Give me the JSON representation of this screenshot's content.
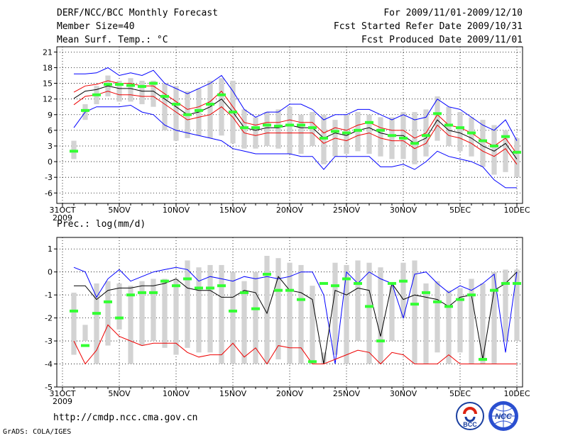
{
  "header": {
    "title": "DERF/NCC/BCC Monthly Forecast",
    "member": "Member Size=40",
    "variable": "Mean Surf. Temp.: °C",
    "period": "For 2009/11/01-2009/12/10",
    "started": "Fcst Started Refer Date 2009/10/31",
    "produced": "Fcst Produced Date 2009/11/01"
  },
  "prec_label": "Prec.: log(mm/d)",
  "footer": {
    "url": "http://cmdp.ncc.cma.gov.cn",
    "credit": "GrADS: COLA/IGES"
  },
  "logos": {
    "bcc": "BCC",
    "ncc": "NCC"
  },
  "colors": {
    "bar": "#d3d3d3",
    "green": "#33ff33",
    "blue": "#0000ff",
    "red": "#ee0000",
    "black": "#000000"
  },
  "chart_data": [
    {
      "type": "line",
      "title": "Mean Surf. Temp.: °C",
      "x_tick_labels": [
        "31OCT",
        "5NOV",
        "10NOV",
        "15NOV",
        "20NOV",
        "25NOV",
        "30NOV",
        "5DEC",
        "10DEC"
      ],
      "x_tick_days": [
        0,
        5,
        10,
        15,
        20,
        25,
        30,
        35,
        40
      ],
      "x_sublabel": "2009",
      "y_ticks": [
        -6,
        -3,
        0,
        3,
        6,
        9,
        12,
        15,
        18,
        21
      ],
      "ylim": [
        -8,
        22
      ],
      "xlim": [
        -0.5,
        40.5
      ],
      "days": [
        1,
        2,
        3,
        4,
        5,
        6,
        7,
        8,
        9,
        10,
        11,
        12,
        13,
        14,
        15,
        16,
        17,
        18,
        19,
        20,
        21,
        22,
        23,
        24,
        25,
        26,
        27,
        28,
        29,
        30,
        31,
        32,
        33,
        34,
        35,
        36,
        37,
        38,
        39,
        40
      ],
      "bar_low": [
        0.5,
        8.0,
        11.0,
        12.5,
        11.5,
        11.5,
        11.0,
        10.5,
        6.0,
        4.0,
        4.5,
        5.0,
        4.5,
        5.0,
        3.5,
        2.5,
        2.5,
        3.0,
        2.5,
        1.5,
        1.5,
        3.0,
        -0.5,
        1.0,
        1.5,
        2.0,
        1.5,
        1.0,
        0.5,
        0.5,
        -0.5,
        1.0,
        4.0,
        3.0,
        2.0,
        1.0,
        -1.0,
        -2.5,
        -2.0,
        -3.0
      ],
      "bar_high": [
        4.0,
        11.0,
        14.5,
        16.5,
        15.5,
        16.0,
        15.5,
        15.5,
        15.0,
        14.5,
        13.5,
        14.0,
        15.5,
        16.0,
        15.5,
        10.0,
        8.5,
        9.5,
        10.0,
        10.5,
        9.0,
        9.5,
        9.0,
        8.0,
        9.0,
        9.5,
        9.0,
        8.5,
        8.5,
        9.5,
        9.5,
        10.0,
        12.5,
        10.5,
        9.5,
        8.5,
        8.0,
        7.0,
        6.0,
        4.5
      ],
      "green": [
        2.0,
        9.8,
        12.8,
        14.8,
        14.8,
        14.6,
        14.4,
        15.0,
        12.5,
        11.0,
        9.0,
        9.8,
        11.0,
        12.8,
        9.5,
        6.5,
        6.5,
        7.0,
        6.8,
        7.0,
        7.0,
        6.5,
        4.5,
        5.8,
        5.5,
        6.0,
        7.5,
        6.0,
        5.0,
        4.5,
        3.5,
        5.0,
        9.2,
        7.0,
        6.5,
        5.5,
        4.0,
        3.0,
        4.8,
        1.8
      ],
      "series": [
        {
          "name": "upper",
          "color": "blue",
          "values": [
            16.8,
            16.8,
            17.0,
            18.0,
            16.5,
            17.0,
            16.5,
            17.5,
            15.0,
            14.0,
            13.0,
            14.0,
            15.0,
            16.5,
            13.5,
            10.0,
            8.5,
            9.5,
            9.5,
            11.0,
            11.0,
            10.0,
            8.0,
            9.0,
            9.0,
            10.0,
            10.0,
            9.0,
            8.0,
            9.0,
            8.0,
            8.5,
            12.0,
            10.5,
            10.0,
            8.5,
            7.0,
            6.0,
            8.0,
            4.0
          ]
        },
        {
          "name": "p70",
          "color": "red",
          "values": [
            13.3,
            14.5,
            14.8,
            15.5,
            15.0,
            15.0,
            14.5,
            14.5,
            13.0,
            11.5,
            10.0,
            10.5,
            11.5,
            13.5,
            10.5,
            7.5,
            7.0,
            7.5,
            7.5,
            8.0,
            7.5,
            7.5,
            5.5,
            6.5,
            6.0,
            7.0,
            7.5,
            6.5,
            6.0,
            6.0,
            4.5,
            5.5,
            9.0,
            7.0,
            6.5,
            5.5,
            4.0,
            3.0,
            4.5,
            1.5
          ]
        },
        {
          "name": "mean",
          "color": "black",
          "values": [
            12.1,
            13.5,
            13.8,
            14.5,
            14.0,
            14.0,
            13.5,
            13.5,
            12.0,
            10.5,
            9.0,
            9.5,
            10.5,
            12.0,
            9.5,
            6.5,
            6.0,
            6.5,
            6.5,
            7.0,
            6.5,
            6.5,
            4.5,
            5.5,
            5.0,
            6.0,
            6.5,
            5.5,
            5.0,
            5.0,
            3.5,
            4.5,
            8.0,
            6.0,
            5.5,
            4.5,
            3.0,
            2.0,
            3.5,
            0.5
          ]
        },
        {
          "name": "p30",
          "color": "red",
          "values": [
            10.9,
            12.5,
            12.8,
            13.5,
            12.8,
            12.8,
            12.5,
            12.5,
            11.0,
            9.5,
            8.0,
            8.5,
            9.0,
            10.5,
            8.5,
            5.5,
            5.0,
            5.5,
            5.5,
            5.5,
            5.5,
            5.5,
            3.5,
            4.5,
            4.0,
            5.0,
            5.5,
            4.5,
            4.0,
            4.0,
            2.5,
            3.5,
            7.0,
            5.0,
            4.5,
            3.5,
            2.0,
            1.0,
            2.5,
            -0.5
          ]
        },
        {
          "name": "lower",
          "color": "blue",
          "values": [
            6.5,
            9.5,
            10.5,
            10.5,
            10.5,
            10.8,
            9.5,
            9.0,
            7.0,
            6.0,
            5.5,
            5.0,
            4.5,
            4.0,
            2.5,
            2.0,
            1.5,
            1.5,
            1.5,
            1.5,
            1.0,
            1.0,
            -1.5,
            1.0,
            1.0,
            1.0,
            1.0,
            -1.0,
            -1.0,
            -0.5,
            -1.5,
            0.0,
            2.0,
            1.0,
            0.5,
            0.0,
            -1.0,
            -3.5,
            -5.0,
            -5.0
          ]
        }
      ]
    },
    {
      "type": "line",
      "title": "Prec.: log(mm/d)",
      "x_tick_labels": [
        "31OCT",
        "5NOV",
        "10NOV",
        "15NOV",
        "20NOV",
        "25NOV",
        "30NOV",
        "5DEC",
        "10DEC"
      ],
      "x_tick_days": [
        0,
        5,
        10,
        15,
        20,
        25,
        30,
        35,
        40
      ],
      "x_sublabel": "2009",
      "y_ticks": [
        -5,
        -4,
        -3,
        -2,
        -1,
        0,
        1
      ],
      "ylim": [
        -5,
        1.5
      ],
      "xlim": [
        -0.5,
        40.5
      ],
      "days": [
        1,
        2,
        3,
        4,
        5,
        6,
        7,
        8,
        9,
        10,
        11,
        12,
        13,
        14,
        15,
        16,
        17,
        18,
        19,
        20,
        21,
        22,
        23,
        24,
        25,
        26,
        27,
        28,
        29,
        30,
        31,
        32,
        33,
        34,
        35,
        36,
        37,
        38,
        39,
        40
      ],
      "bar_low": [
        -3.6,
        -3.0,
        -4.0,
        -3.2,
        -2.5,
        -4.0,
        -3.2,
        -3.0,
        -3.3,
        -3.6,
        -3.3,
        -3.5,
        -3.5,
        -4.0,
        -4.0,
        -4.0,
        -4.0,
        -4.0,
        -3.8,
        -4.0,
        -4.0,
        -4.0,
        -4.0,
        -3.6,
        -4.0,
        -3.0,
        -4.0,
        -4.0,
        -3.0,
        -2.0,
        -4.0,
        -4.0,
        -3.5,
        -4.0,
        -3.5,
        -4.0,
        -4.0,
        -4.0,
        -3.0,
        -3.0
      ],
      "bar_high": [
        -0.9,
        -2.3,
        -0.5,
        -0.4,
        -0.5,
        -0.6,
        -0.4,
        -0.3,
        -0.3,
        -0.3,
        0.5,
        0.2,
        0.3,
        0.3,
        0.0,
        -0.4,
        0.0,
        0.7,
        0.6,
        0.4,
        0.3,
        -0.6,
        -3.5,
        0.4,
        0.3,
        0.5,
        0.4,
        0.2,
        -0.6,
        0.4,
        0.5,
        -0.5,
        -0.4,
        -0.8,
        -0.7,
        -0.3,
        -0.5,
        0.0,
        0.1,
        0.1
      ],
      "green": [
        -1.7,
        -3.2,
        -1.8,
        -1.3,
        -2.0,
        -1.0,
        -0.9,
        -0.9,
        -0.4,
        -0.6,
        -0.3,
        -0.7,
        -0.7,
        -0.6,
        -1.7,
        -0.9,
        -1.6,
        -0.1,
        -0.8,
        -0.8,
        -1.2,
        -3.9,
        -0.5,
        -0.6,
        -0.3,
        -0.5,
        -1.5,
        -3.0,
        -0.5,
        -0.4,
        -1.4,
        -0.9,
        -1.3,
        -1.5,
        -1.2,
        -1.0,
        -3.8,
        -0.8,
        -0.5,
        -0.5
      ],
      "series": [
        {
          "name": "upper",
          "color": "blue",
          "values": [
            0.2,
            0.0,
            -1.1,
            -0.3,
            0.1,
            -0.4,
            -0.2,
            0.0,
            0.1,
            0.2,
            0.1,
            -0.4,
            -0.2,
            -0.3,
            -0.4,
            -0.2,
            -0.3,
            -0.2,
            -0.3,
            -0.2,
            0.0,
            0.0,
            -1.0,
            -4.0,
            0.0,
            -0.5,
            0.0,
            -0.3,
            -0.5,
            -2.0,
            -0.1,
            0.0,
            -0.5,
            -0.9,
            -0.6,
            -0.8,
            -0.5,
            -0.1,
            -3.5,
            0.0
          ]
        },
        {
          "name": "mean",
          "color": "black",
          "values": [
            -0.6,
            -0.6,
            -1.2,
            -0.8,
            -0.7,
            -0.7,
            -0.6,
            -0.6,
            -0.5,
            -0.3,
            -0.7,
            -0.8,
            -0.8,
            -1.1,
            -1.1,
            -0.8,
            -0.9,
            -1.8,
            -0.2,
            -0.8,
            -0.9,
            -1.2,
            -4.0,
            -0.8,
            -1.0,
            -0.7,
            -0.8,
            -2.8,
            -0.5,
            -1.2,
            -1.0,
            -1.1,
            -1.2,
            -1.5,
            -1.1,
            -1.0,
            -3.8,
            -0.8,
            -0.5,
            0.0
          ]
        },
        {
          "name": "lower",
          "color": "red",
          "values": [
            -3.0,
            -4.0,
            -3.4,
            -2.3,
            -2.8,
            -3.0,
            -3.2,
            -3.1,
            -3.1,
            -3.1,
            -3.5,
            -3.7,
            -3.6,
            -3.6,
            -3.1,
            -3.7,
            -3.3,
            -4.0,
            -3.2,
            -3.3,
            -3.3,
            -4.0,
            -4.0,
            -3.8,
            -3.6,
            -3.4,
            -3.5,
            -4.0,
            -3.5,
            -3.6,
            -4.0,
            -4.0,
            -4.0,
            -3.6,
            -4.0,
            -4.0,
            -4.0,
            -4.0,
            -4.0,
            -4.0
          ]
        }
      ]
    }
  ]
}
